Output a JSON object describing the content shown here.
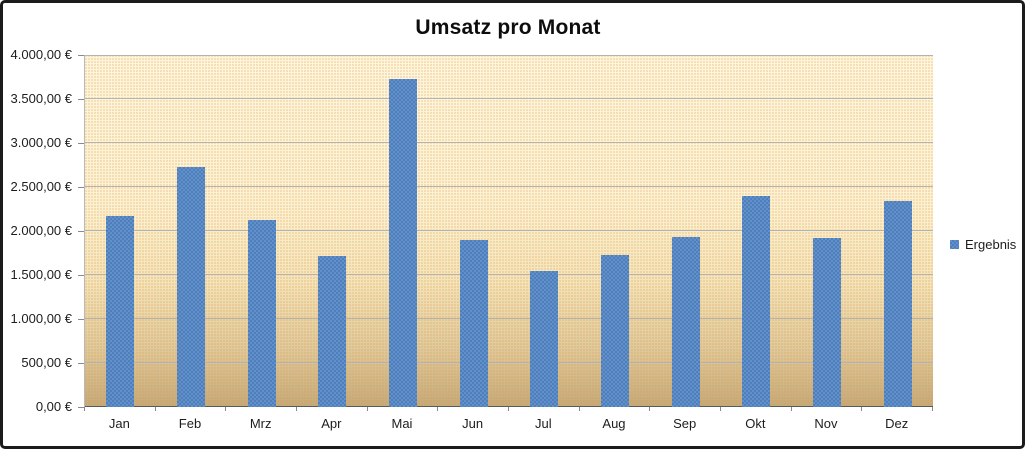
{
  "chart_data": {
    "type": "bar",
    "title": "Umsatz pro Monat",
    "xlabel": "",
    "ylabel": "",
    "categories": [
      "Jan",
      "Feb",
      "Mrz",
      "Apr",
      "Mai",
      "Jun",
      "Jul",
      "Aug",
      "Sep",
      "Okt",
      "Nov",
      "Dez"
    ],
    "series": [
      {
        "name": "Ergebnis",
        "values": [
          2175,
          2730,
          2120,
          1720,
          3725,
          1900,
          1550,
          1730,
          1935,
          2400,
          1920,
          2345
        ]
      }
    ],
    "ylim": [
      0,
      4000
    ],
    "y_ticks": [
      {
        "value": 0,
        "label": "0,00 €"
      },
      {
        "value": 500,
        "label": "500,00 €"
      },
      {
        "value": 1000,
        "label": "1.000,00 €"
      },
      {
        "value": 1500,
        "label": "1.500,00 €"
      },
      {
        "value": 2000,
        "label": "2.000,00 €"
      },
      {
        "value": 2500,
        "label": "2.500,00 €"
      },
      {
        "value": 3000,
        "label": "3.000,00 €"
      },
      {
        "value": 3500,
        "label": "3.500,00 €"
      },
      {
        "value": 4000,
        "label": "4.000,00 €"
      }
    ],
    "grid": "horizontal",
    "legend": {
      "position": "right",
      "label": "Ergebnis"
    },
    "colors": {
      "bar": "#4F81BD",
      "bar_checker_light": "#6390C9",
      "plot_bg_top": "#FDF6DD",
      "plot_bg_bottom": "#C3AA7B",
      "gridline": "#B3B3B3",
      "axis_line": "#595959",
      "frame_border": "#1B1B1B",
      "text": "#1D1D1D"
    }
  }
}
